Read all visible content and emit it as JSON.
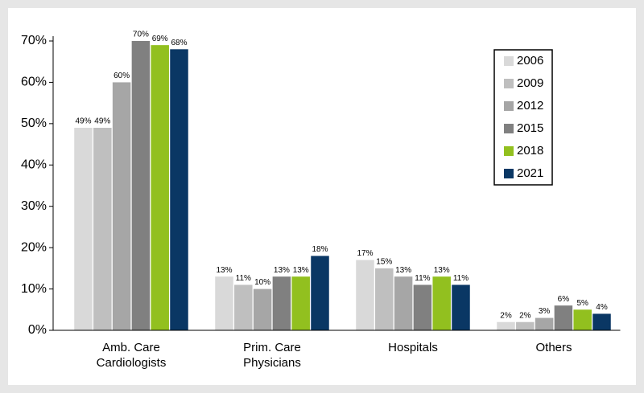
{
  "chart_data": {
    "type": "bar",
    "categories": [
      "Amb. Care Cardiologists",
      "Prim. Care Physicians",
      "Hospitals",
      "Others"
    ],
    "series": [
      {
        "name": "2006",
        "color": "#d9d9d9",
        "values": [
          49,
          13,
          17,
          2
        ],
        "value_labels": [
          "49%",
          "13%",
          "17%",
          "2%"
        ]
      },
      {
        "name": "2009",
        "color": "#bfbfbf",
        "values": [
          49,
          11,
          15,
          2
        ],
        "value_labels": [
          "49%",
          "11%",
          "15%",
          "2%"
        ]
      },
      {
        "name": "2012",
        "color": "#a6a6a6",
        "values": [
          60,
          10,
          13,
          3
        ],
        "value_labels": [
          "60%",
          "10%",
          "13%",
          "3%"
        ]
      },
      {
        "name": "2015",
        "color": "#808080",
        "values": [
          70,
          13,
          11,
          6
        ],
        "value_labels": [
          "70%",
          "13%",
          "11%",
          "6%"
        ]
      },
      {
        "name": "2018",
        "color": "#92c01f",
        "values": [
          69,
          13,
          13,
          5
        ],
        "value_labels": [
          "69%",
          "13%",
          "13%",
          "5%"
        ]
      },
      {
        "name": "2021",
        "color": "#0a3764",
        "values": [
          68,
          18,
          11,
          4
        ],
        "value_labels": [
          "68%",
          "18%",
          "11%",
          "4%"
        ]
      }
    ],
    "ylim": [
      0,
      70
    ],
    "yticks": [
      {
        "value": 0,
        "label": "0%"
      },
      {
        "value": 10,
        "label": "10%"
      },
      {
        "value": 20,
        "label": "20%"
      },
      {
        "value": 30,
        "label": "30%"
      },
      {
        "value": 40,
        "label": "40%"
      },
      {
        "value": 50,
        "label": "50%"
      },
      {
        "value": 60,
        "label": "60%"
      },
      {
        "value": 70,
        "label": "70%"
      }
    ],
    "grid": false,
    "legend": "upper right"
  }
}
